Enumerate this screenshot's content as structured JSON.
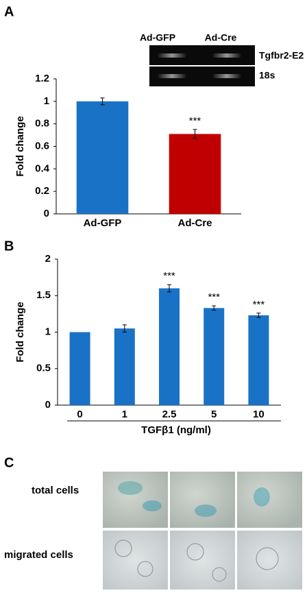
{
  "panels": [
    "A",
    "B",
    "C"
  ],
  "gel": {
    "lanes": [
      "Ad-GFP",
      "Ad-Cre"
    ],
    "bands": [
      "Tgfbr2-E2",
      "18s"
    ]
  },
  "micrographs": {
    "rows": [
      "total cells",
      "migrated cells"
    ]
  },
  "chart_data": [
    {
      "type": "bar",
      "y_label": "Fold change",
      "categories": [
        "Ad-GFP",
        "Ad-Cre"
      ],
      "values": [
        1.0,
        0.71
      ],
      "errors": [
        0.03,
        0.04
      ],
      "colors": [
        "#1a72c6",
        "#c00000"
      ],
      "annotations": [
        null,
        "***"
      ],
      "ylim": [
        0,
        1.2
      ],
      "yticks": [
        0,
        0.2,
        0.4,
        0.6,
        0.8,
        1,
        1.2
      ]
    },
    {
      "type": "bar",
      "y_label": "Fold change",
      "x_label": "TGFβ1 (ng/ml)",
      "categories": [
        "0",
        "1",
        "2.5",
        "5",
        "10"
      ],
      "values": [
        1.0,
        1.05,
        1.6,
        1.33,
        1.23
      ],
      "errors": [
        0,
        0.05,
        0.05,
        0.03,
        0.03
      ],
      "color": "#1a72c6",
      "annotations": [
        null,
        null,
        "***",
        "***",
        "***"
      ],
      "ylim": [
        0,
        2
      ],
      "yticks": [
        0,
        0.5,
        1,
        1.5,
        2
      ]
    }
  ]
}
